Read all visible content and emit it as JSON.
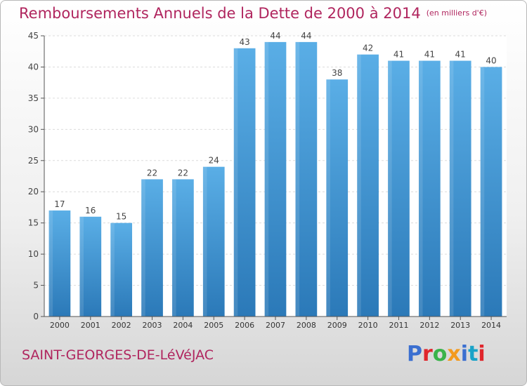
{
  "header": {
    "title": "Remboursements Annuels de la Dette de 2000 à 2014",
    "unit": "(en milliers d'€)"
  },
  "footer": {
    "commune": "SAINT-GEORGES-DE-LéVéJAC",
    "brand": "Proxiti"
  },
  "colors": {
    "title": "#b0255e",
    "bar_top": "#5aaee6",
    "bar_bottom": "#2b79b8",
    "grid": "#dcdcdc",
    "axis": "#555555",
    "brand_letters": [
      "#3b6fd0",
      "#e0262c",
      "#3ab34a",
      "#f39a1e",
      "#3b6fd0",
      "#1aa3c8",
      "#e0262c"
    ]
  },
  "chart_data": {
    "type": "bar",
    "title": "Remboursements Annuels de la Dette de 2000 à 2014",
    "unit": "(en milliers d'€)",
    "categories": [
      "2000",
      "2001",
      "2002",
      "2003",
      "2004",
      "2005",
      "2006",
      "2007",
      "2008",
      "2009",
      "2010",
      "2011",
      "2012",
      "2013",
      "2014"
    ],
    "values": [
      17,
      16,
      15,
      22,
      22,
      24,
      43,
      44,
      44,
      38,
      42,
      41,
      41,
      41,
      40
    ],
    "ylim": [
      0,
      45
    ],
    "yticks": [
      0,
      5,
      10,
      15,
      20,
      25,
      30,
      35,
      40,
      45
    ],
    "grid": true,
    "data_labels": true
  }
}
